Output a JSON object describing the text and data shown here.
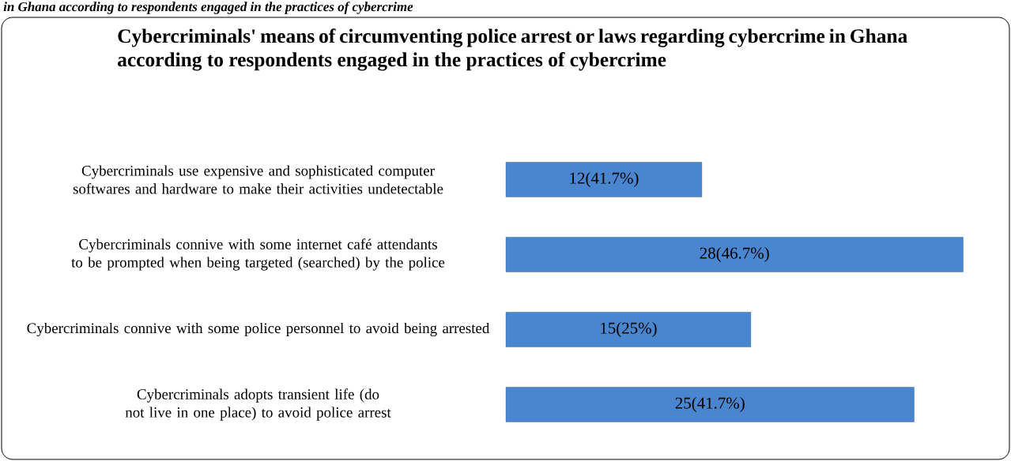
{
  "chart_data": {
    "type": "bar",
    "orientation": "horizontal",
    "title": "Cybercriminals' means of circumventing police arrest or laws regarding cybercrime in Ghana according to respondents engaged in the practices of cybercrime",
    "annotations": [
      "in Ghana according to respondents engaged in the practices of cybercrime"
    ],
    "categories": [
      "Cybercriminals use expensive and sophisticated computer softwares and hardware to make their activities undetectable",
      "Cybercriminals connive with some internet café attendants to be prompted when being targeted (searched) by the police",
      "Cybercriminals connive with some police personnel to avoid being arrested",
      "Cybercriminals adopts transient life (do not live in one place) to avoid police arrest"
    ],
    "values": [
      12,
      28,
      15,
      25
    ],
    "value_labels": [
      "12(41.7%)",
      "28(46.7%)",
      "15(25%)",
      "25(41.7%)"
    ],
    "color": "#4a86cf"
  }
}
